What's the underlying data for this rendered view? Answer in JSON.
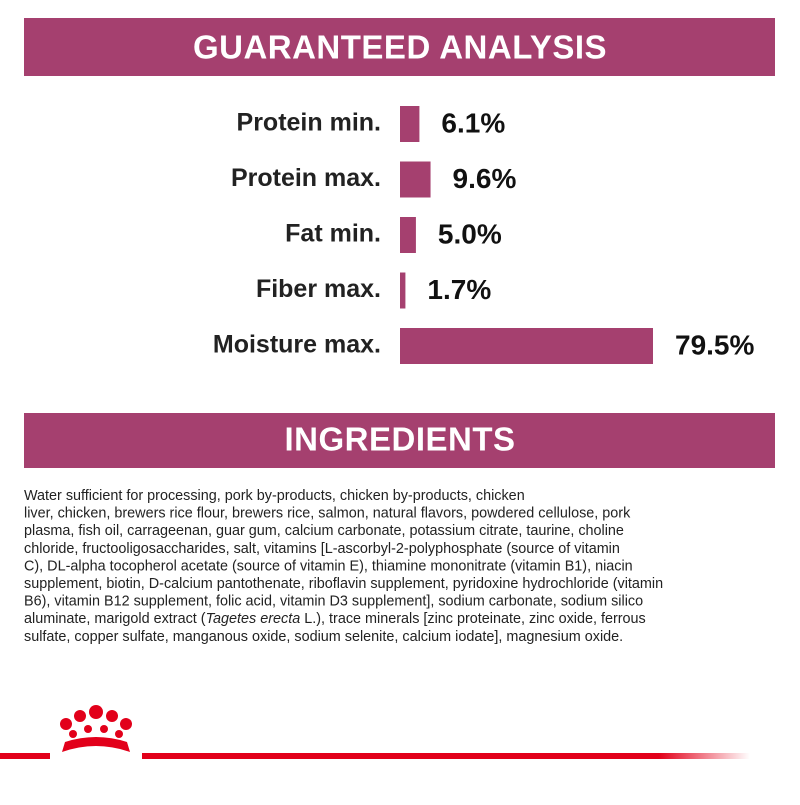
{
  "header": {
    "title": "GUARANTEED ANALYSIS"
  },
  "chart_data": {
    "type": "bar",
    "orientation": "horizontal",
    "color": "#a5406f",
    "categories": [
      "Protein min.",
      "Protein max.",
      "Fat min.",
      "Fiber max.",
      "Moisture max."
    ],
    "values": [
      6.1,
      9.6,
      5.0,
      1.7,
      79.5
    ],
    "value_labels": [
      "6.1%",
      "9.6%",
      "5.0%",
      "1.7%",
      "79.5%"
    ]
  },
  "ingredients": {
    "title": "INGREDIENTS",
    "lines": [
      "Water sufficient for processing, pork by-products, chicken by-products, chicken",
      "liver, chicken, brewers rice flour, brewers rice, salmon, natural flavors, powdered cellulose, pork",
      "plasma, fish oil, carrageenan, guar gum, calcium carbonate, potassium citrate, taurine, choline",
      "chloride, fructooligosaccharides, salt, vitamins [L-ascorbyl-2-polyphosphate (source of vitamin",
      "C), DL-alpha tocopherol acetate (source of vitamin E), thiamine mononitrate (vitamin B1), niacin",
      "supplement, biotin, D-calcium pantothenate, riboflavin supplement, pyridoxine hydrochloride (vitamin",
      "B6), vitamin B12 supplement, folic acid, vitamin D3 supplement], sodium carbonate, sodium silico",
      {
        "pre": "aluminate, marigold extract (",
        "italic": "Tagetes erecta",
        "post": " L.), trace minerals [zinc proteinate, zinc oxide, ferrous"
      },
      "sulfate, copper sulfate, manganous oxide, sodium selenite, calcium iodate], magnesium oxide."
    ]
  }
}
